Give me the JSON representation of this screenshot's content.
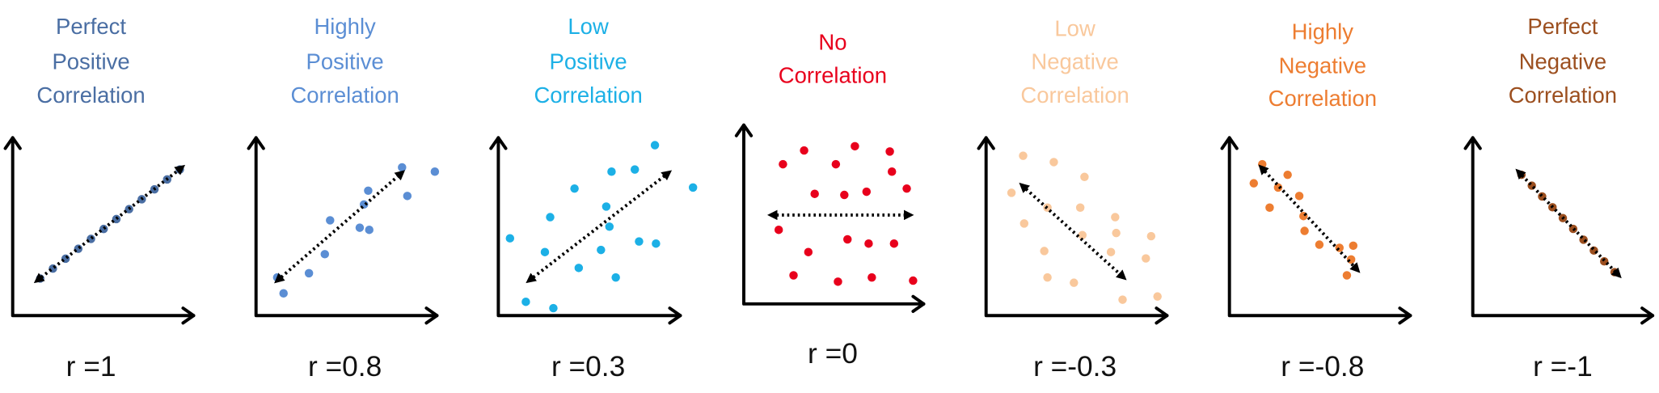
{
  "panels": [
    {
      "title": [
        "Perfect",
        "Positive",
        "Correlation"
      ],
      "r_label": "r =1"
    },
    {
      "title": [
        "Highly",
        "Positive",
        "Correlation"
      ],
      "r_label": "r =0.8"
    },
    {
      "title": [
        "Low",
        "Positive",
        "Correlation"
      ],
      "r_label": "r =0.3"
    },
    {
      "title": [
        "No",
        "Correlation"
      ],
      "r_label": "r =0"
    },
    {
      "title": [
        "Low",
        "Negative",
        "Correlation"
      ],
      "r_label": "r =-0.3"
    },
    {
      "title": [
        "Highly",
        "Negative",
        "Correlation"
      ],
      "r_label": "r =-0.8"
    },
    {
      "title": [
        "Perfect",
        "Negative",
        "Correlation"
      ],
      "r_label": "r =-1"
    }
  ]
}
